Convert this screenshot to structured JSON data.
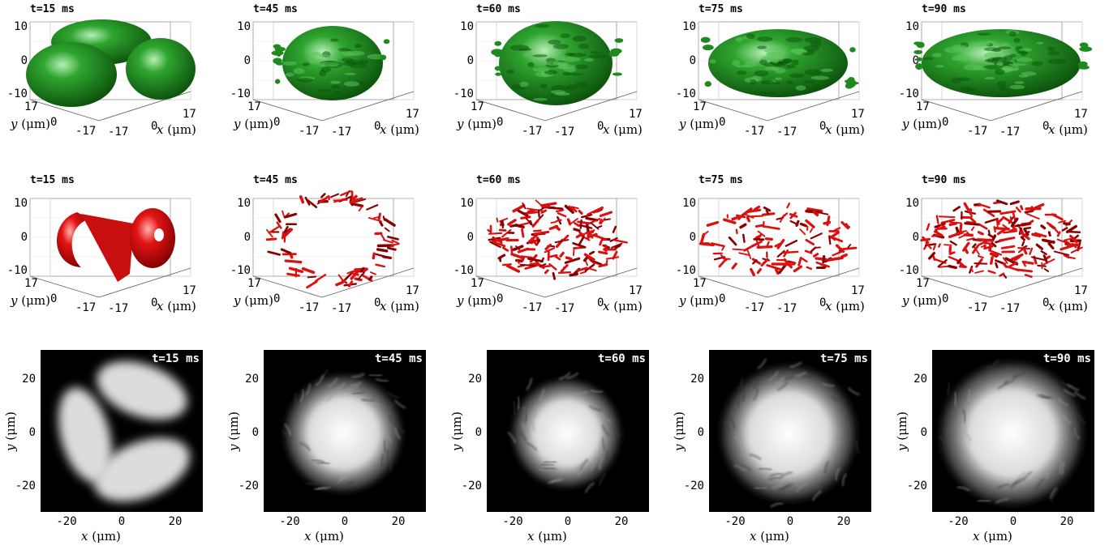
{
  "figure": {
    "colors": {
      "density_iso": "#1f8a1f",
      "vortex_iso": "#e01010",
      "column_bg": "#000000",
      "column_fg": "#ffffff"
    },
    "row_3d_ticks": {
      "z": [
        "10",
        "0",
        "-10"
      ],
      "y": [
        "17",
        "0",
        "-17"
      ],
      "x": [
        "-17",
        "0",
        "17"
      ],
      "y_label": "y (μm)",
      "x_label": "x (μm)"
    },
    "row_2d_ticks": {
      "y": [
        "20",
        "0",
        "-20"
      ],
      "x": [
        "-20",
        "0",
        "20"
      ],
      "y_label": "y (μm)",
      "x_label": "x (μm)"
    },
    "rows": [
      {
        "kind": "density isosurface",
        "panels": [
          {
            "time": "t=15 ms"
          },
          {
            "time": "t=45 ms"
          },
          {
            "time": "t=60 ms"
          },
          {
            "time": "t=75 ms"
          },
          {
            "time": "t=90 ms"
          }
        ]
      },
      {
        "kind": "vortex isosurface",
        "panels": [
          {
            "time": "t=15 ms"
          },
          {
            "time": "t=45 ms"
          },
          {
            "time": "t=60 ms"
          },
          {
            "time": "t=75 ms"
          },
          {
            "time": "t=90 ms"
          }
        ]
      },
      {
        "kind": "column density",
        "panels": [
          {
            "time": "t=15 ms"
          },
          {
            "time": "t=45 ms"
          },
          {
            "time": "t=60 ms"
          },
          {
            "time": "t=75 ms"
          },
          {
            "time": "t=90 ms"
          }
        ]
      }
    ]
  }
}
